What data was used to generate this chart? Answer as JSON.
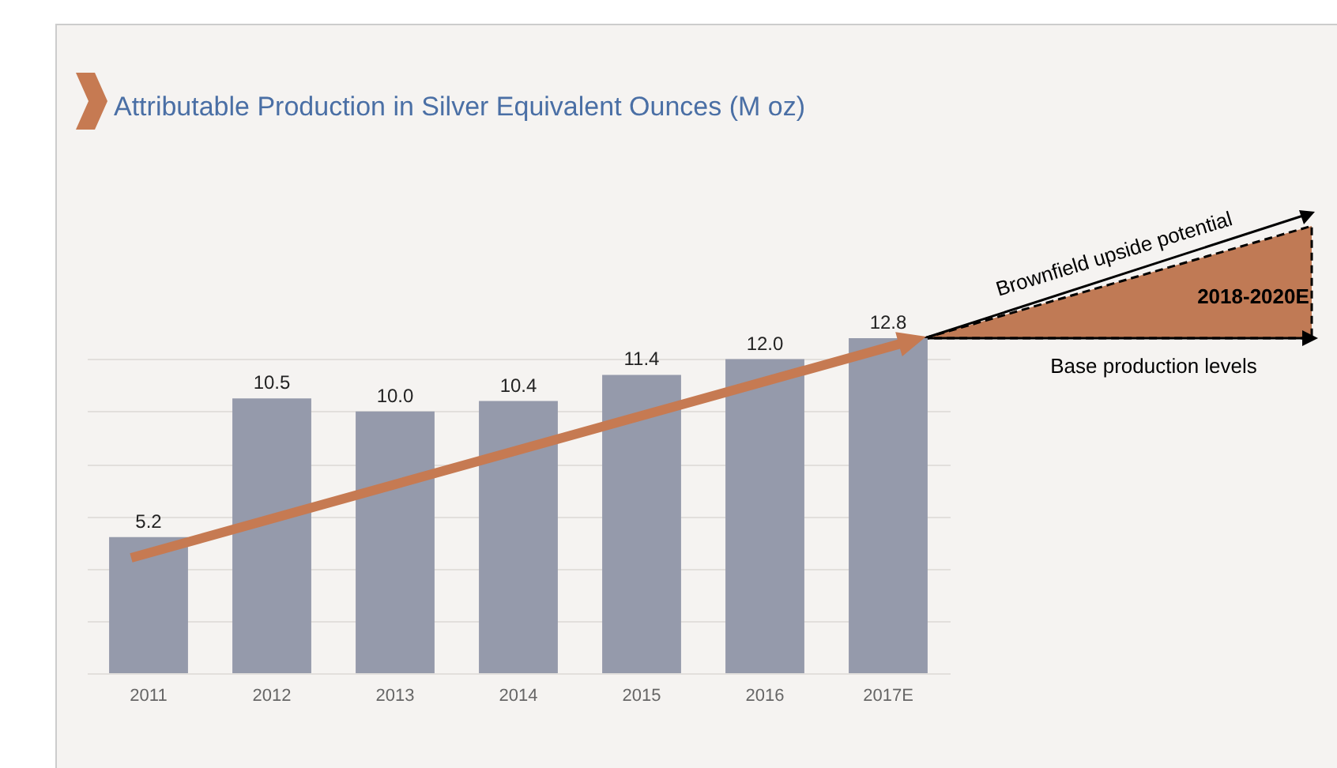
{
  "chart_data": {
    "type": "bar",
    "title": "Attributable Production in Silver Equivalent Ounces (M oz)",
    "categories": [
      "2011",
      "2012",
      "2013",
      "2014",
      "2015",
      "2016",
      "2017E"
    ],
    "series": [
      {
        "color": "#959aab",
        "values": [
          5.2,
          10.5,
          10.0,
          10.4,
          11.4,
          12.0,
          12.8
        ],
        "value_labels": [
          "5.2",
          "10.5",
          "10.0",
          "10.4",
          "11.4",
          "12.0",
          "12.8"
        ]
      }
    ],
    "grid": "y",
    "tick_labels": "x",
    "annotations": [
      "Brownfield upside potential",
      "2018-2020E",
      "Base production levels"
    ]
  }
}
